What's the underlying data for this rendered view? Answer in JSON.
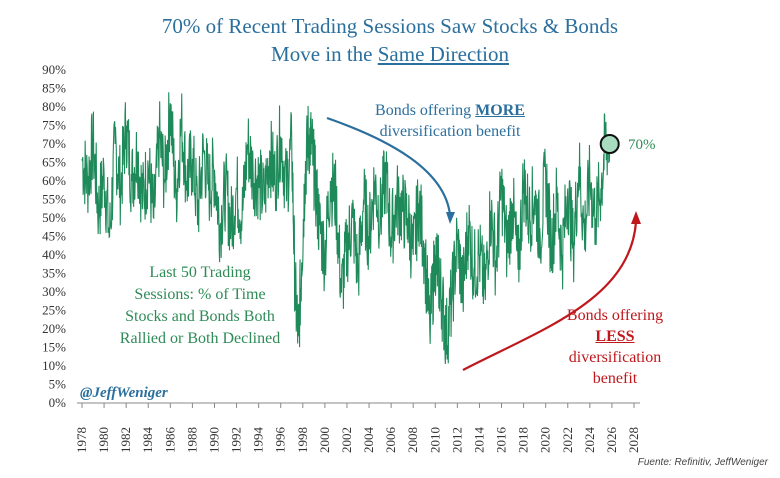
{
  "title_line1": "70% of Recent Trading Sessions Saw Stocks & Bonds",
  "title_line2_pre": "Move in the ",
  "title_line2_underlined": "Same Direction",
  "annotation_more": {
    "pre": "Bonds offering ",
    "emph": "MORE",
    "post": "diversification benefit"
  },
  "annotation_less": {
    "line1": "Bonds offering",
    "emph": "LESS",
    "line3": "diversification",
    "line4": "benefit"
  },
  "annotation_last50": [
    "Last 50 Trading",
    "Sessions: % of Time",
    "Stocks and Bonds Both",
    "Rallied or Both Declined"
  ],
  "current_label": "70%",
  "handle": "@JeffWeniger",
  "source": "Fuente: Refinitiv, JeffWeniger",
  "colors": {
    "series": "#1e8a5a",
    "title": "#2b6f9e",
    "more_arrow": "#2b6f9e",
    "less_arrow": "#c0171c",
    "marker_fill": "#a8dcc0"
  },
  "chart_data": {
    "type": "line",
    "title": "70% of Recent Trading Sessions Saw Stocks & Bonds Move in the Same Direction",
    "xlabel": "",
    "ylabel": "",
    "xlim": [
      1978,
      2028
    ],
    "ylim": [
      0,
      90
    ],
    "y_tick_labels": [
      "0%",
      "5%",
      "10%",
      "15%",
      "20%",
      "25%",
      "30%",
      "35%",
      "40%",
      "45%",
      "50%",
      "55%",
      "60%",
      "65%",
      "70%",
      "75%",
      "80%",
      "85%",
      "90%"
    ],
    "x_tick_labels": [
      "1978",
      "1980",
      "1982",
      "1984",
      "1986",
      "1988",
      "1990",
      "1992",
      "1994",
      "1996",
      "1998",
      "2000",
      "2002",
      "2004",
      "2006",
      "2008",
      "2010",
      "2012",
      "2014",
      "2016",
      "2018",
      "2020",
      "2022",
      "2024",
      "2026",
      "2028"
    ],
    "grid": false,
    "series": [
      {
        "name": "",
        "x": [
          1978.0,
          1978.5,
          1979.0,
          1979.5,
          1980.0,
          1980.5,
          1981.0,
          1981.5,
          1982.0,
          1982.5,
          1983.0,
          1983.5,
          1984.0,
          1984.5,
          1985.0,
          1985.5,
          1986.0,
          1986.5,
          1987.0,
          1987.5,
          1988.0,
          1988.5,
          1989.0,
          1989.5,
          1990.0,
          1990.5,
          1991.0,
          1991.5,
          1992.0,
          1992.5,
          1993.0,
          1993.5,
          1994.0,
          1994.5,
          1995.0,
          1995.5,
          1996.0,
          1996.5,
          1997.0,
          1997.3,
          1997.6,
          1997.9,
          1998.2,
          1998.5,
          1998.8,
          1999.1,
          1999.5,
          2000.0,
          2000.5,
          2001.0,
          2001.5,
          2002.0,
          2002.5,
          2003.0,
          2003.5,
          2004.0,
          2004.5,
          2005.0,
          2005.5,
          2006.0,
          2006.5,
          2007.0,
          2007.5,
          2008.0,
          2008.5,
          2009.0,
          2009.5,
          2010.0,
          2010.3,
          2010.6,
          2011.0,
          2011.5,
          2012.0,
          2012.5,
          2013.0,
          2013.5,
          2014.0,
          2014.5,
          2015.0,
          2015.5,
          2016.0,
          2016.5,
          2017.0,
          2017.5,
          2018.0,
          2018.5,
          2019.0,
          2019.5,
          2020.0,
          2020.5,
          2021.0,
          2021.5,
          2022.0,
          2022.5,
          2023.0,
          2023.5,
          2024.0,
          2024.5,
          2025.0,
          2025.4,
          2025.8
        ],
        "y": [
          66,
          60,
          70,
          52,
          62,
          45,
          70,
          58,
          75,
          60,
          68,
          55,
          64,
          50,
          72,
          60,
          81,
          55,
          76,
          60,
          66,
          52,
          68,
          58,
          63,
          48,
          58,
          48,
          58,
          50,
          70,
          62,
          60,
          55,
          68,
          60,
          72,
          58,
          70,
          30,
          18,
          38,
          62,
          72,
          70,
          60,
          48,
          40,
          60,
          55,
          30,
          42,
          50,
          35,
          55,
          45,
          60,
          50,
          62,
          45,
          55,
          52,
          50,
          40,
          54,
          42,
          20,
          40,
          35,
          28,
          18,
          28,
          44,
          30,
          48,
          36,
          40,
          30,
          52,
          38,
          58,
          42,
          54,
          36,
          60,
          50,
          56,
          45,
          62,
          42,
          55,
          40,
          58,
          42,
          64,
          46,
          60,
          50,
          58,
          70,
          70
        ]
      }
    ]
  }
}
